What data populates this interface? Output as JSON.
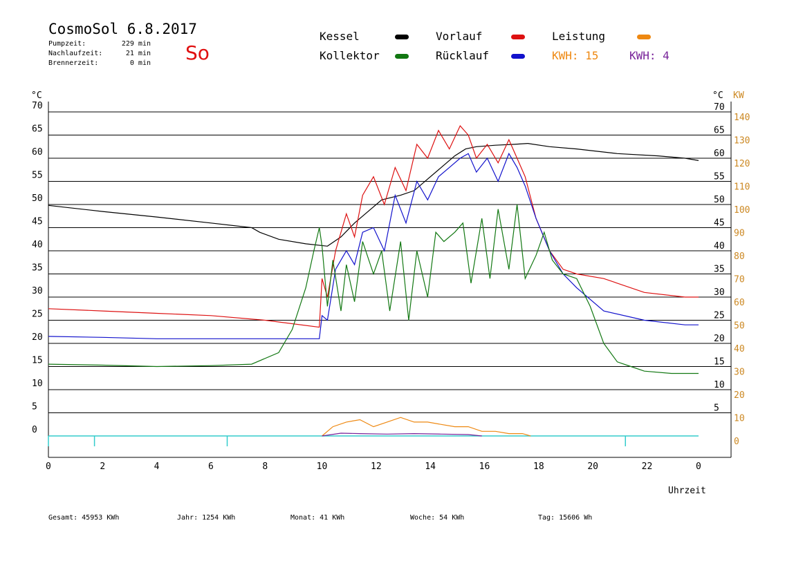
{
  "header": {
    "title": "CosmoSol 6.8.2017",
    "day": "So",
    "stats": [
      {
        "label": "Pumpzeit:",
        "value": "229 min"
      },
      {
        "label": "Nachlaufzeit:",
        "value": "21 min"
      },
      {
        "label": "Brennerzeit:",
        "value": "0 min"
      }
    ]
  },
  "legend": {
    "kessel": "Kessel",
    "kollektor": "Kollektor",
    "vorlauf": "Vorlauf",
    "ruecklauf": "Rücklauf",
    "leistung": "Leistung",
    "kwh_orange": "KWH: 15",
    "kwh_purple": "KWH: 4"
  },
  "colors": {
    "kessel": "#000000",
    "kollektor": "#117711",
    "vorlauf": "#dd1111",
    "ruecklauf": "#1111cc",
    "leistung": "#ee8811",
    "kwh2": "#772299",
    "baseline": "#33cccc",
    "right_axis": "#cc8822"
  },
  "footer": {
    "gesamt": "Gesamt:  45953 KWh",
    "jahr": "Jahr:  1254 KWh",
    "monat": "Monat:    41 KWh",
    "woche": "Woche:    54 KWh",
    "tag": "Tag:  15606 Wh"
  },
  "chart_data": {
    "type": "line",
    "title": "CosmoSol 6.8.2017",
    "xlabel": "Uhrzeit",
    "ylabel_left": "°C",
    "ylabel_right_temp": "°C",
    "ylabel_right_power": "KW",
    "xlim": [
      0,
      24
    ],
    "ylim": [
      0,
      70
    ],
    "y2lim": [
      0,
      140
    ],
    "grid": true,
    "x_tick_labels": [
      "0",
      "2",
      "4",
      "6",
      "8",
      "10",
      "12",
      "14",
      "16",
      "18",
      "20",
      "22",
      "0"
    ],
    "y_tick_labels": [
      "0",
      "5",
      "10",
      "15",
      "20",
      "25",
      "30",
      "35",
      "40",
      "45",
      "50",
      "55",
      "60",
      "65",
      "70"
    ],
    "y2_tick_labels": [
      "0",
      "10",
      "20",
      "30",
      "40",
      "50",
      "60",
      "70",
      "80",
      "90",
      "100",
      "110",
      "120",
      "130",
      "140"
    ],
    "series": [
      {
        "name": "Kessel",
        "key": "kessel",
        "x": [
          0,
          2,
          4,
          6,
          7.5,
          7.8,
          8.5,
          9.5,
          10.3,
          10.8,
          11.3,
          11.8,
          12.3,
          13,
          13.5,
          14,
          14.5,
          15,
          15.4,
          15.8,
          16.5,
          17.2,
          17.7,
          18.5,
          19.5,
          21,
          22.5,
          23.5,
          24
        ],
        "y": [
          49.8,
          48.5,
          47.3,
          46,
          45,
          44,
          42.5,
          41.5,
          41,
          43,
          46,
          48.5,
          51,
          52,
          53,
          55.5,
          58,
          60.5,
          62,
          62.5,
          62.8,
          63,
          63.2,
          62.5,
          62,
          61,
          60.5,
          60,
          59.5
        ]
      },
      {
        "name": "Vorlauf",
        "key": "vorlauf",
        "x": [
          0,
          2,
          4,
          6,
          8,
          10,
          10.1,
          10.3,
          10.6,
          11,
          11.3,
          11.6,
          12,
          12.4,
          12.8,
          13.2,
          13.6,
          14,
          14.4,
          14.8,
          15.2,
          15.5,
          15.8,
          16.2,
          16.6,
          17,
          17.3,
          17.6,
          18,
          18.5,
          19,
          19.5,
          20.5,
          22,
          23.5,
          24
        ],
        "y": [
          27.5,
          27,
          26.5,
          26,
          25,
          23.5,
          34,
          30,
          40,
          48,
          43,
          52,
          56,
          50,
          58,
          53,
          63,
          60,
          66,
          62,
          67,
          65,
          60,
          63,
          59,
          64,
          60,
          56,
          47,
          40,
          36,
          35,
          34,
          31,
          30,
          30
        ]
      },
      {
        "name": "Rücklauf",
        "key": "ruecklauf",
        "x": [
          0,
          2,
          4,
          6,
          8,
          10,
          10.1,
          10.3,
          10.6,
          11,
          11.3,
          11.6,
          12,
          12.4,
          12.8,
          13.2,
          13.6,
          14,
          14.4,
          14.8,
          15.2,
          15.5,
          15.8,
          16.2,
          16.6,
          17,
          17.3,
          17.6,
          18,
          18.5,
          19,
          19.5,
          20.5,
          22,
          23.5,
          24
        ],
        "y": [
          21.5,
          21.3,
          21,
          21,
          21,
          21,
          26,
          25,
          36,
          40,
          37,
          44,
          45,
          40,
          52,
          46,
          55,
          51,
          56,
          58,
          60,
          61,
          57,
          60,
          55,
          61,
          58,
          54,
          47,
          40,
          35,
          32,
          27,
          25,
          24,
          24
        ]
      },
      {
        "name": "Kollektor",
        "key": "kollektor",
        "x": [
          0,
          2,
          4,
          6,
          7.5,
          8.5,
          9,
          9.5,
          9.8,
          10,
          10.1,
          10.3,
          10.5,
          10.8,
          11,
          11.3,
          11.6,
          12,
          12.3,
          12.6,
          13,
          13.3,
          13.6,
          14,
          14.3,
          14.6,
          15,
          15.3,
          15.6,
          16,
          16.3,
          16.6,
          17,
          17.3,
          17.6,
          18,
          18.3,
          18.6,
          19,
          19.5,
          20,
          20.5,
          21,
          21.5,
          22,
          23,
          24
        ],
        "y": [
          15.5,
          15.3,
          15,
          15.2,
          15.5,
          18,
          23,
          32,
          40,
          45,
          41,
          28,
          38,
          27,
          37,
          29,
          42,
          35,
          40,
          27,
          42,
          25,
          40,
          30,
          44,
          42,
          44,
          46,
          33,
          47,
          34,
          49,
          36,
          50,
          34,
          39,
          44,
          38,
          35,
          34,
          28,
          20,
          16,
          15,
          14,
          13.5,
          13.5
        ]
      },
      {
        "name": "Leistung",
        "key": "leistung",
        "x": [
          10.1,
          10.5,
          11,
          11.5,
          12,
          12.5,
          13,
          13.5,
          14,
          14.5,
          15,
          15.5,
          16,
          16.5,
          17,
          17.5,
          17.8
        ],
        "y": [
          0,
          2,
          3,
          3.5,
          2,
          3,
          4,
          3,
          3,
          2.5,
          2,
          2,
          1,
          1,
          0.5,
          0.5,
          0
        ]
      },
      {
        "name": "KWH: 4",
        "key": "kwh2",
        "x": [
          10.1,
          10.8,
          11.5,
          12.5,
          13.5,
          14.5,
          15.5,
          16
        ],
        "y": [
          0,
          0.6,
          0.5,
          0.4,
          0.5,
          0.4,
          0.3,
          0
        ]
      }
    ]
  }
}
